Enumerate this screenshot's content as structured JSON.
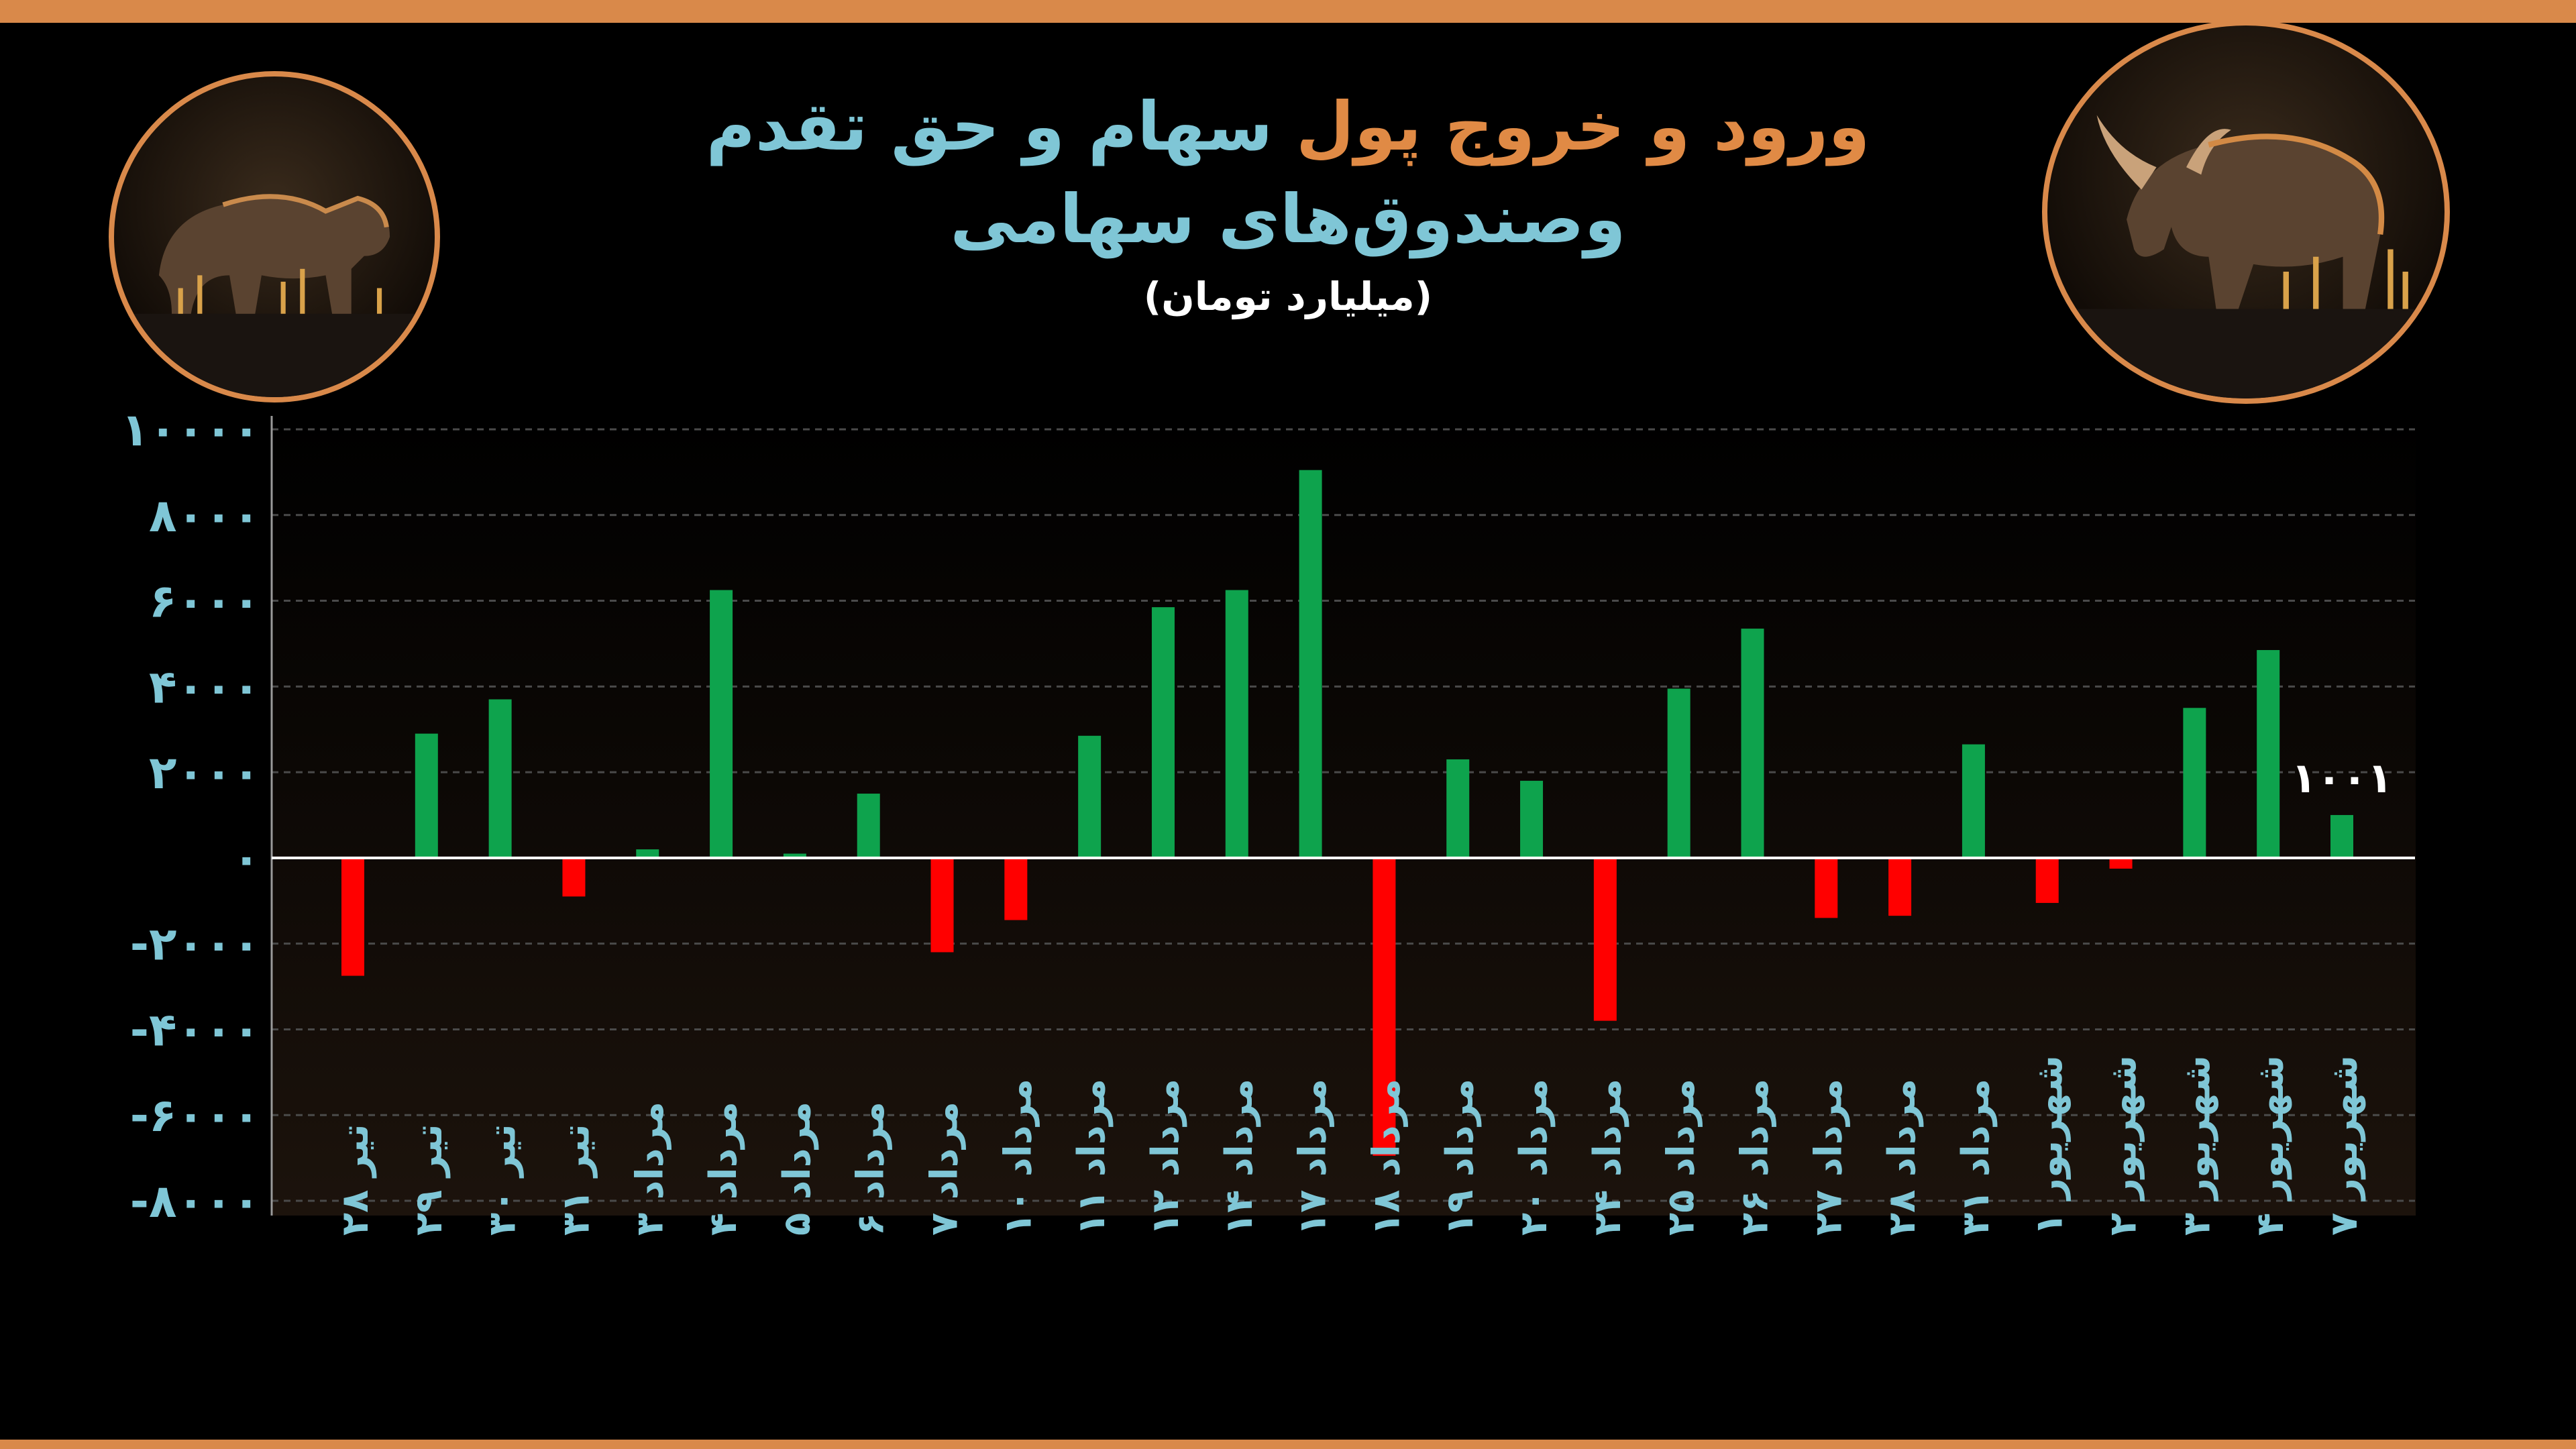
{
  "title": {
    "line1_orange": "ورود و خروج پول",
    "line1_blue": "سهام و حق تقدم",
    "line2": "وصندوق‌های سهامی",
    "unit": "(میلیارد تومان)"
  },
  "icons": {
    "left": "bear-icon",
    "right": "bull-icon"
  },
  "colors": {
    "positive": "#0ea34d",
    "negative": "#ff0000",
    "axis_text": "#7fc6d6",
    "accent": "#d9894a"
  },
  "chart_data": {
    "type": "bar",
    "ylim": [
      -8000,
      10000
    ],
    "yticks": [
      {
        "value": 10000,
        "label": "۱۰۰۰۰"
      },
      {
        "value": 8000,
        "label": "۸۰۰۰"
      },
      {
        "value": 6000,
        "label": "۶۰۰۰"
      },
      {
        "value": 4000,
        "label": "۴۰۰۰"
      },
      {
        "value": 2000,
        "label": "۲۰۰۰"
      },
      {
        "value": 0,
        "label": "۰"
      },
      {
        "value": -2000,
        "label": "-۲۰۰۰"
      },
      {
        "value": -4000,
        "label": "-۴۰۰۰"
      },
      {
        "value": -6000,
        "label": "-۶۰۰۰"
      },
      {
        "value": -8000,
        "label": "-۸۰۰۰"
      }
    ],
    "grid": true,
    "categories": [
      "تیر ۲۸",
      "تیر ۲۹",
      "تیر ۳۰",
      "تیر ۳۱",
      "مرداد ۳",
      "مرداد ۴",
      "مرداد ۵",
      "مرداد ۶",
      "مرداد ۷",
      "مرداد ۱۰",
      "مرداد ۱۱",
      "مرداد ۱۲",
      "مرداد ۱۴",
      "مرداد ۱۷",
      "مرداد ۱۸",
      "مرداد ۱۹",
      "مرداد ۲۰",
      "مرداد ۲۴",
      "مرداد ۲۵",
      "مرداد ۲۶",
      "مرداد ۲۷",
      "مرداد ۲۸",
      "مرداد ۳۱",
      "شهریور ۱",
      "شهریور ۲",
      "شهریور ۳",
      "شهریور ۴",
      "شهریور ۷"
    ],
    "values": [
      -2750,
      2900,
      3700,
      -900,
      200,
      6250,
      100,
      1500,
      -2200,
      -1450,
      2850,
      5850,
      6250,
      9050,
      -6950,
      2300,
      1800,
      -3800,
      3950,
      5350,
      -1400,
      -1350,
      2650,
      -1050,
      -250,
      3500,
      4850,
      1001
    ],
    "data_labels": [
      {
        "index": 27,
        "text": "۱۰۰۱"
      }
    ]
  }
}
